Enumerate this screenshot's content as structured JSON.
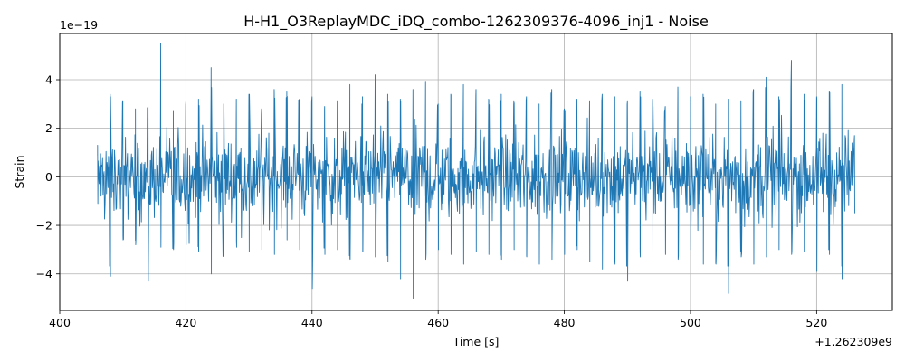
{
  "chart_data": {
    "type": "line",
    "title": "H-H1_O3ReplayMDC_iDQ_combo-1262309376-4096_inj1 - Noise",
    "xlabel": "Time [s]",
    "ylabel": "Strain",
    "x_offset_label": "+1.262309e9",
    "y_scale_label": "1e−19",
    "xlim": [
      400,
      532
    ],
    "ylim": [
      -5.5,
      5.9
    ],
    "x_ticks": [
      400,
      420,
      440,
      460,
      480,
      500,
      520
    ],
    "x_tick_labels": [
      "400",
      "420",
      "440",
      "460",
      "480",
      "500",
      "520"
    ],
    "y_ticks": [
      -4,
      -2,
      0,
      2,
      4
    ],
    "y_tick_labels": [
      "−4",
      "−2",
      "0",
      "2",
      "4"
    ],
    "grid": true,
    "series": [
      {
        "color": "#1f77b4",
        "x_start": 406,
        "x_end": 526,
        "envelope_upper": [
          1.3,
          3.4,
          3.1,
          2.8,
          2.9,
          5.5,
          2.7,
          3.1,
          3.2,
          4.5,
          3.0,
          3.2,
          3.4,
          2.8,
          3.6,
          3.5,
          3.2,
          3.3,
          2.9,
          3.1,
          3.8,
          3.3,
          4.2,
          3.4,
          3.2,
          3.6,
          3.9,
          3.0,
          3.4,
          3.8,
          3.6,
          3.2,
          3.4,
          3.1,
          3.3,
          3.0,
          3.6,
          2.8,
          3.2,
          3.1,
          3.4,
          3.3,
          3.1,
          3.5,
          3.2,
          2.9,
          3.7,
          3.3,
          3.4,
          3.0,
          3.2,
          3.1,
          3.6,
          4.1,
          3.3,
          4.8,
          3.4,
          3.3,
          3.5,
          3.8,
          1.7
        ],
        "envelope_lower": [
          -1.1,
          -4.1,
          -2.6,
          -2.8,
          -4.3,
          -2.9,
          -3.0,
          -2.8,
          -3.1,
          -4.0,
          -3.3,
          -2.9,
          -3.1,
          -3.0,
          -3.2,
          -2.6,
          -3.0,
          -4.6,
          -3.2,
          -3.0,
          -3.4,
          -3.1,
          -3.3,
          -3.5,
          -4.2,
          -5.0,
          -3.4,
          -3.0,
          -3.2,
          -3.6,
          -3.1,
          -3.2,
          -3.4,
          -3.0,
          -3.3,
          -3.6,
          -3.4,
          -3.2,
          -3.0,
          -3.5,
          -3.8,
          -3.6,
          -4.3,
          -3.3,
          -3.1,
          -3.2,
          -3.4,
          -3.0,
          -3.6,
          -3.6,
          -4.8,
          -3.3,
          -3.6,
          -3.3,
          -3.0,
          -3.2,
          -3.1,
          -3.9,
          -3.2,
          -4.2,
          -1.5
        ],
        "typical_amplitude": 1.15
      }
    ]
  }
}
